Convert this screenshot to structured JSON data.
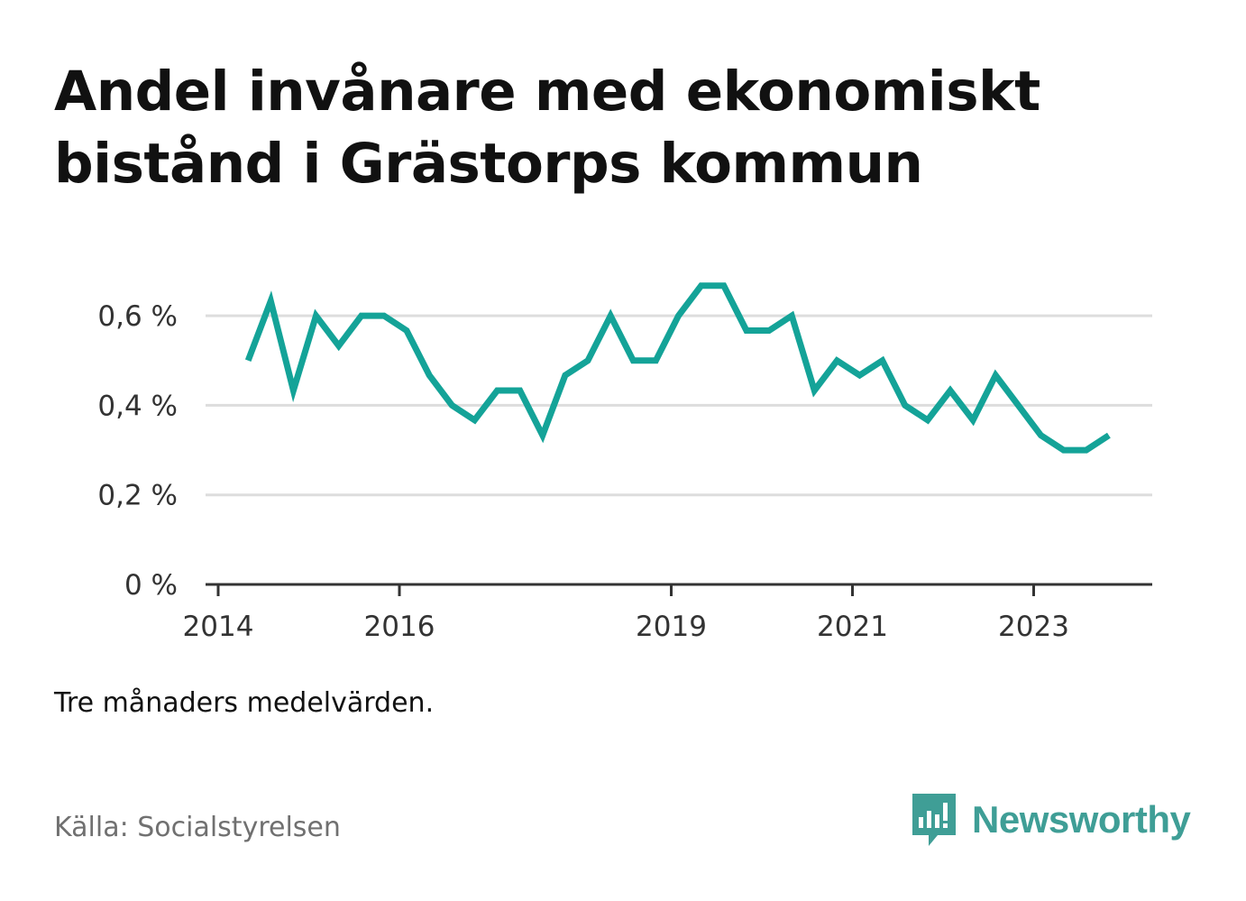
{
  "title": "Andel invånare med ekonomiskt bistånd i Grästorps kommun",
  "note": "Tre månaders medelvärden.",
  "source": "Källa: Socialstyrelsen",
  "brand": {
    "name": "Newsworthy",
    "icon": "newsworthy-logo-icon",
    "color": "#3f9e96"
  },
  "colors": {
    "line": "#14a398",
    "grid": "#dddddd",
    "axis": "#333333",
    "tick_text": "#333333"
  },
  "chart_data": {
    "type": "line",
    "title": "Andel invånare med ekonomiskt bistånd i Grästorps kommun",
    "xlabel": "",
    "ylabel": "",
    "x_range": [
      2014,
      2024.4
    ],
    "ylim": [
      0,
      0.7
    ],
    "y_ticks": [
      0,
      0.2,
      0.4,
      0.6
    ],
    "y_tick_labels": [
      "0 %",
      "0,2 %",
      "0,4 %",
      "0,6 %"
    ],
    "x_ticks": [
      2014,
      2016,
      2019,
      2021,
      2023
    ],
    "x_tick_labels": [
      "2014",
      "2016",
      "2019",
      "2021",
      "2023"
    ],
    "grid": true,
    "legend": "none",
    "series": [
      {
        "x": [
          2014.33,
          2014.58,
          2014.83,
          2015.08,
          2015.33,
          2015.58,
          2015.83,
          2016.08,
          2016.33,
          2016.58,
          2016.83,
          2017.08,
          2017.33,
          2017.58,
          2017.83,
          2018.08,
          2018.33,
          2018.58,
          2018.83,
          2019.08,
          2019.33,
          2019.58,
          2019.83,
          2020.08,
          2020.33,
          2020.58,
          2020.83,
          2021.08,
          2021.33,
          2021.58,
          2021.83,
          2022.08,
          2022.33,
          2022.58,
          2022.83,
          2023.08,
          2023.33,
          2023.58,
          2023.83
        ],
        "values": [
          0.5,
          0.633,
          0.433,
          0.6,
          0.533,
          0.6,
          0.6,
          0.567,
          0.467,
          0.4,
          0.367,
          0.433,
          0.433,
          0.333,
          0.467,
          0.5,
          0.6,
          0.5,
          0.5,
          0.6,
          0.667,
          0.667,
          0.567,
          0.567,
          0.6,
          0.433,
          0.5,
          0.467,
          0.5,
          0.4,
          0.367,
          0.433,
          0.367,
          0.467,
          0.4,
          0.333,
          0.3,
          0.3,
          0.333
        ]
      }
    ]
  }
}
